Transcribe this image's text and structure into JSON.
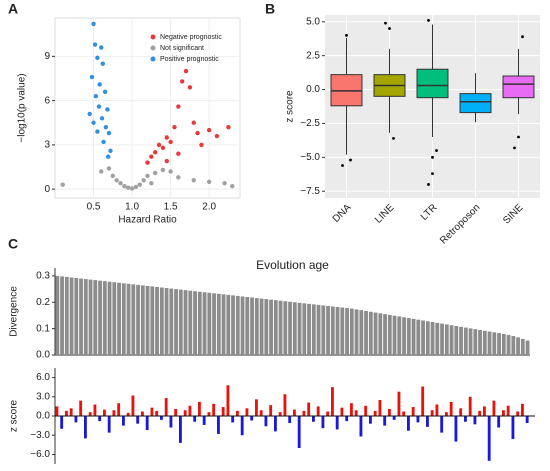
{
  "chart_data": [
    {
      "type": "scatter",
      "panel": "A",
      "xlabel": "Hazard Ratio",
      "ylabel": "−log10(p value)",
      "xlim": [
        0.0,
        2.4
      ],
      "ylim": [
        -0.6,
        11.6
      ],
      "xticks": [
        0.5,
        {
          "value": 1,
          "label": "1.0"
        },
        1.5,
        {
          "value": 2,
          "label": "2.0"
        }
      ],
      "yticks": [
        0,
        3,
        6,
        9
      ],
      "series": [
        {
          "name": "Negative prognostic",
          "color": "#e8393b",
          "x": [
            1.2,
            1.25,
            1.3,
            1.35,
            1.4,
            1.45,
            1.5,
            1.55,
            1.6,
            1.65,
            1.7,
            1.75,
            1.8,
            1.85,
            1.9,
            2.0,
            2.1,
            2.25,
            1.6,
            1.45
          ],
          "values": [
            1.8,
            2.2,
            2.5,
            3.0,
            2.8,
            3.5,
            3.2,
            4.2,
            5.6,
            7.3,
            8.0,
            6.9,
            4.5,
            3.8,
            3.0,
            4.0,
            3.6,
            4.2,
            2.4,
            1.9
          ]
        },
        {
          "name": "Not significant",
          "color": "#a0a0a0",
          "x": [
            0.1,
            0.6,
            0.75,
            0.8,
            0.85,
            0.9,
            0.95,
            1.0,
            1.05,
            1.1,
            1.15,
            1.2,
            1.3,
            1.4,
            1.5,
            1.6,
            1.8,
            2.0,
            2.2,
            2.3,
            0.7,
            1.25
          ],
          "values": [
            0.3,
            1.2,
            0.9,
            0.6,
            0.4,
            0.2,
            0.1,
            0.05,
            0.15,
            0.3,
            0.6,
            0.9,
            1.1,
            1.3,
            1.2,
            0.8,
            0.6,
            0.5,
            0.4,
            0.2,
            1.4,
            0.4
          ]
        },
        {
          "name": "Positive prognostic",
          "color": "#2f8fe0",
          "x": [
            0.5,
            0.52,
            0.55,
            0.6,
            0.62,
            0.58,
            0.65,
            0.68,
            0.7,
            0.72,
            0.48,
            0.53,
            0.57,
            0.61,
            0.66,
            0.45,
            0.5,
            0.55,
            0.63,
            0.69
          ],
          "values": [
            11.2,
            9.8,
            8.9,
            9.6,
            8.5,
            7.1,
            6.6,
            5.4,
            3.8,
            2.6,
            7.6,
            6.3,
            5.6,
            4.8,
            4.2,
            5.1,
            4.5,
            3.9,
            3.2,
            2.2
          ]
        }
      ]
    },
    {
      "type": "box",
      "panel": "B",
      "ylabel": "z score",
      "categories": [
        "DNA",
        "LINE",
        "LTR",
        "Retroposon",
        "SINE"
      ],
      "colors": [
        "#f8766d",
        "#a3a500",
        "#00bf7d",
        "#00b0f6",
        "#e76bf3"
      ],
      "ylim": [
        -8.0,
        5.5
      ],
      "yticks": [
        {
          "value": -7.5,
          "label": "−7.5"
        },
        {
          "value": -5,
          "label": "−5.0"
        },
        {
          "value": -2.5,
          "label": "−2.5"
        },
        {
          "value": 0,
          "label": "0.0"
        },
        {
          "value": 2.5,
          "label": "2.5"
        },
        {
          "value": 5,
          "label": "5.0"
        }
      ],
      "grid": true,
      "boxes": [
        {
          "min": -4.8,
          "q1": -1.2,
          "median": -0.1,
          "q3": 1.1,
          "max": 3.8,
          "outliers": [
            -5.6,
            4.0,
            -5.2
          ]
        },
        {
          "min": -3.2,
          "q1": -0.5,
          "median": 0.3,
          "q3": 1.1,
          "max": 3.0,
          "outliers": [
            4.9,
            4.5,
            -3.6
          ]
        },
        {
          "min": -3.5,
          "q1": -0.6,
          "median": 0.3,
          "q3": 1.5,
          "max": 4.8,
          "outliers": [
            -7.0,
            -6.2,
            -4.5,
            5.1,
            -5.0
          ]
        },
        {
          "min": -2.4,
          "q1": -1.7,
          "median": -0.9,
          "q3": -0.3,
          "max": 1.2,
          "outliers": []
        },
        {
          "min": -1.8,
          "q1": -0.6,
          "median": 0.4,
          "q3": 1.0,
          "max": 3.0,
          "outliers": [
            -4.3,
            -3.5,
            3.9
          ]
        }
      ]
    },
    {
      "type": "bar",
      "panel": "C",
      "title": "Evolution age",
      "ylabel": "Divergence",
      "color": "#8c8c8c",
      "ylim": [
        0,
        0.33
      ],
      "yticks": [
        {
          "value": 0,
          "label": "0.0"
        },
        0.1,
        0.2,
        0.3
      ],
      "values": [
        0.3,
        0.298,
        0.296,
        0.294,
        0.292,
        0.29,
        0.288,
        0.286,
        0.284,
        0.282,
        0.28,
        0.278,
        0.276,
        0.274,
        0.272,
        0.27,
        0.268,
        0.266,
        0.264,
        0.262,
        0.26,
        0.258,
        0.256,
        0.254,
        0.252,
        0.25,
        0.248,
        0.246,
        0.244,
        0.242,
        0.24,
        0.238,
        0.236,
        0.234,
        0.232,
        0.23,
        0.228,
        0.226,
        0.224,
        0.222,
        0.22,
        0.218,
        0.216,
        0.214,
        0.212,
        0.21,
        0.208,
        0.206,
        0.204,
        0.202,
        0.2,
        0.198,
        0.196,
        0.194,
        0.192,
        0.19,
        0.188,
        0.186,
        0.184,
        0.182,
        0.18,
        0.178,
        0.176,
        0.173,
        0.17,
        0.167,
        0.164,
        0.161,
        0.158,
        0.155,
        0.152,
        0.149,
        0.146,
        0.143,
        0.14,
        0.137,
        0.134,
        0.131,
        0.128,
        0.125,
        0.122,
        0.119,
        0.116,
        0.113,
        0.11,
        0.107,
        0.104,
        0.101,
        0.098,
        0.095,
        0.092,
        0.089,
        0.086,
        0.083,
        0.08,
        0.076,
        0.072,
        0.067,
        0.061,
        0.055
      ]
    },
    {
      "type": "signed-bar",
      "ylabel": "z score",
      "positive_color": "#e8140c",
      "negative_color": "#1a1ad6",
      "ylim": [
        -7.5,
        7.5
      ],
      "yticks": [
        {
          "value": 6,
          "label": "6.0"
        },
        {
          "value": 3,
          "label": "3.0"
        },
        {
          "value": 0,
          "label": "0.0"
        },
        {
          "value": -3,
          "label": "−3.0"
        },
        {
          "value": -6,
          "label": "−6.0"
        }
      ],
      "values": [
        1.5,
        -2.0,
        0.8,
        1.2,
        -1.0,
        2.4,
        -3.5,
        0.6,
        1.8,
        -0.8,
        1.0,
        -2.6,
        0.9,
        2.0,
        -1.5,
        0.5,
        3.2,
        -1.2,
        0.7,
        -2.2,
        1.3,
        0.8,
        -0.6,
        2.8,
        -1.8,
        1.1,
        -4.2,
        0.9,
        1.6,
        -0.9,
        2.2,
        -1.4,
        0.6,
        1.9,
        -2.8,
        1.4,
        4.8,
        -1.0,
        0.8,
        -3.0,
        1.2,
        -0.7,
        2.6,
        0.9,
        -1.6,
        1.7,
        -2.4,
        0.6,
        3.4,
        -1.1,
        1.0,
        -5.0,
        0.8,
        2.1,
        -0.9,
        1.5,
        -1.9,
        0.7,
        4.5,
        -2.1,
        1.3,
        -0.8,
        2.0,
        0.9,
        -3.2,
        1.6,
        -1.2,
        0.8,
        2.5,
        -1.5,
        1.1,
        -0.6,
        3.8,
        0.7,
        -2.3,
        1.4,
        -1.0,
        4.6,
        -1.7,
        0.9,
        1.8,
        -2.6,
        0.6,
        2.2,
        -4.0,
        1.2,
        -0.9,
        3.0,
        -1.3,
        0.8,
        1.5,
        -7.0,
        2.4,
        -1.8,
        0.9,
        1.6,
        -3.6,
        0.7,
        1.9,
        -1.1
      ]
    }
  ]
}
